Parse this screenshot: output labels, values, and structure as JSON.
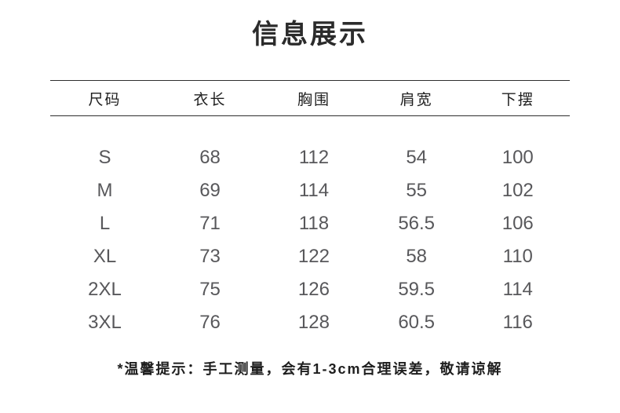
{
  "title": "信息展示",
  "table": {
    "columns": [
      "尺码",
      "衣长",
      "胸围",
      "肩宽",
      "下摆"
    ],
    "rows": [
      [
        "S",
        "68",
        "112",
        "54",
        "100"
      ],
      [
        "M",
        "69",
        "114",
        "55",
        "102"
      ],
      [
        "L",
        "71",
        "118",
        "56.5",
        "106"
      ],
      [
        "XL",
        "73",
        "122",
        "58",
        "110"
      ],
      [
        "2XL",
        "75",
        "126",
        "59.5",
        "114"
      ],
      [
        "3XL",
        "76",
        "128",
        "60.5",
        "116"
      ]
    ]
  },
  "footer_note": "*温馨提示：手工测量，会有1-3cm合理误差，敬请谅解",
  "colors": {
    "background": "#ffffff",
    "title_text": "#2b2b2b",
    "header_text": "#1f1f1f",
    "value_text": "#58585b",
    "divider": "#2e2e2e"
  }
}
